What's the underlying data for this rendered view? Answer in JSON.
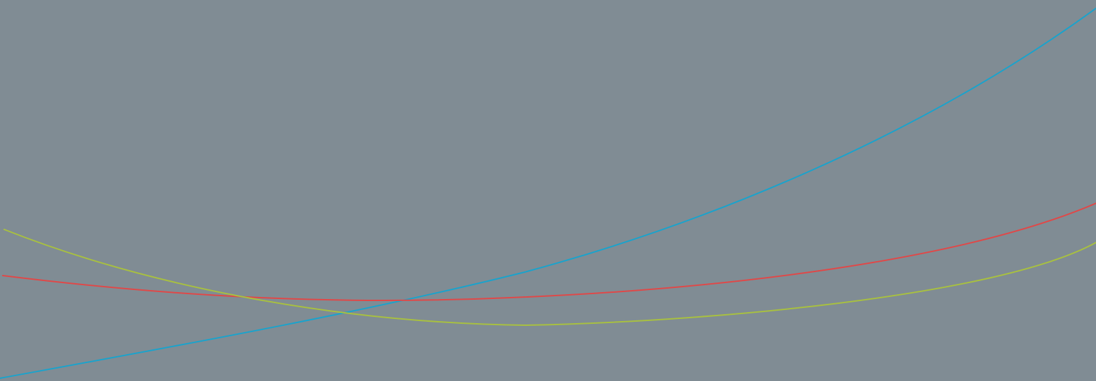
{
  "background_color": "#808c94",
  "curves": [
    {
      "id": "blue",
      "color": "#1aa3cc"
    },
    {
      "id": "red",
      "color": "#e04848"
    },
    {
      "id": "yellow-green",
      "color": "#a8c040"
    }
  ]
}
